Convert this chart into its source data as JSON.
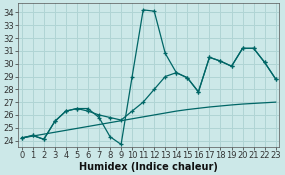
{
  "xlabel": "Humidex (Indice chaleur)",
  "bg_color": "#cce8e8",
  "grid_color": "#b0d4d4",
  "line_color": "#006666",
  "x": [
    0,
    1,
    2,
    3,
    4,
    5,
    6,
    7,
    8,
    9,
    10,
    11,
    12,
    13,
    14,
    15,
    16,
    17,
    18,
    19,
    20,
    21,
    22,
    23
  ],
  "line1": [
    24.2,
    24.4,
    24.1,
    25.5,
    26.3,
    26.5,
    26.5,
    25.8,
    24.3,
    23.7,
    29.0,
    34.2,
    34.1,
    30.8,
    29.3,
    28.9,
    27.8,
    30.5,
    30.2,
    29.8,
    31.2,
    31.2,
    30.1,
    28.8
  ],
  "line2": [
    24.2,
    24.4,
    24.1,
    25.5,
    26.3,
    26.5,
    26.3,
    26.0,
    25.8,
    25.6,
    26.3,
    27.0,
    28.0,
    29.0,
    29.3,
    28.9,
    27.8,
    30.5,
    30.2,
    29.8,
    31.2,
    31.2,
    30.1,
    28.8
  ],
  "line3": [
    24.2,
    24.35,
    24.5,
    24.65,
    24.8,
    24.95,
    25.1,
    25.25,
    25.4,
    25.55,
    25.7,
    25.85,
    26.0,
    26.15,
    26.3,
    26.42,
    26.52,
    26.62,
    26.7,
    26.78,
    26.85,
    26.9,
    26.95,
    27.0
  ],
  "xlim": [
    -0.3,
    23.3
  ],
  "ylim": [
    23.5,
    34.7
  ],
  "yticks": [
    24,
    25,
    26,
    27,
    28,
    29,
    30,
    31,
    32,
    33,
    34
  ],
  "xticks": [
    0,
    1,
    2,
    3,
    4,
    5,
    6,
    7,
    8,
    9,
    10,
    11,
    12,
    13,
    14,
    15,
    16,
    17,
    18,
    19,
    20,
    21,
    22,
    23
  ],
  "xlabel_fontsize": 7,
  "tick_fontsize": 6
}
